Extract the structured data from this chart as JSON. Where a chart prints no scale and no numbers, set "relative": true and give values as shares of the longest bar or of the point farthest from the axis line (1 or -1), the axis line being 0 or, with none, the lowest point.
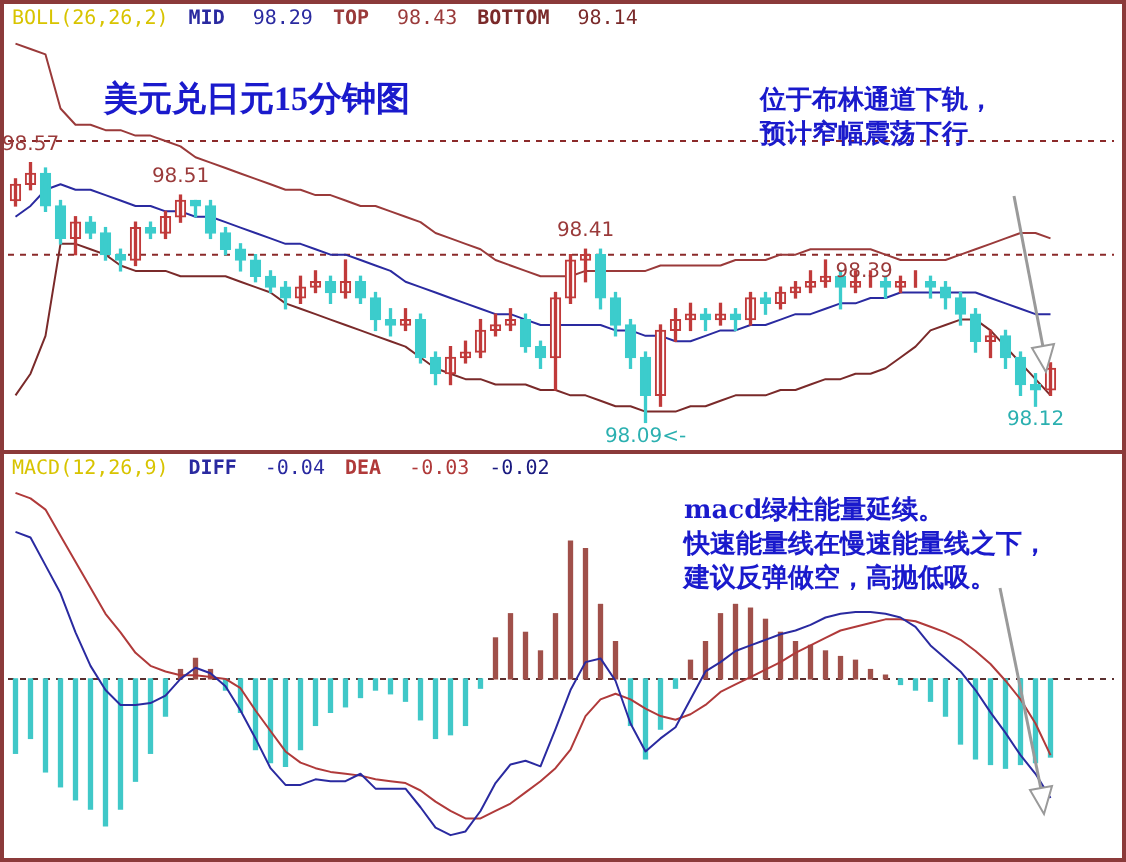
{
  "chart_data": [
    {
      "type": "candlestick",
      "title": "美元兑日元15分钟图",
      "legend": "top left",
      "legend_title": "BOLL(26,26,2)",
      "categories": [
        null,
        null,
        null,
        null,
        null,
        null,
        null,
        null,
        null,
        null,
        null,
        null,
        null,
        null,
        null,
        null,
        null,
        null,
        null,
        null,
        null,
        null,
        null,
        null,
        null,
        null,
        null,
        null,
        null,
        null,
        null,
        null,
        null,
        null,
        null,
        null,
        null,
        null,
        null,
        null,
        null,
        null,
        null,
        null,
        null,
        null,
        null,
        null,
        null,
        null,
        null,
        null,
        null,
        null,
        null,
        null,
        null,
        null,
        null,
        null,
        null,
        null,
        null,
        null,
        null,
        null,
        null,
        null,
        null,
        null
      ],
      "ohlc": [
        [
          98.5,
          98.54,
          98.49,
          98.53
        ],
        [
          98.53,
          98.57,
          98.52,
          98.55
        ],
        [
          98.55,
          98.56,
          98.48,
          98.49
        ],
        [
          98.49,
          98.5,
          98.42,
          98.43
        ],
        [
          98.43,
          98.47,
          98.4,
          98.46
        ],
        [
          98.46,
          98.47,
          98.43,
          98.44
        ],
        [
          98.44,
          98.45,
          98.39,
          98.4
        ],
        [
          98.4,
          98.41,
          98.37,
          98.39
        ],
        [
          98.39,
          98.46,
          98.38,
          98.45
        ],
        [
          98.45,
          98.46,
          98.43,
          98.44
        ],
        [
          98.44,
          98.48,
          98.43,
          98.47
        ],
        [
          98.47,
          98.51,
          98.46,
          98.5
        ],
        [
          98.5,
          98.5,
          98.47,
          98.49
        ],
        [
          98.49,
          98.5,
          98.43,
          98.44
        ],
        [
          98.44,
          98.45,
          98.4,
          98.41
        ],
        [
          98.41,
          98.42,
          98.37,
          98.39
        ],
        [
          98.39,
          98.4,
          98.35,
          98.36
        ],
        [
          98.36,
          98.37,
          98.33,
          98.34
        ],
        [
          98.34,
          98.35,
          98.3,
          98.32
        ],
        [
          98.32,
          98.36,
          98.31,
          98.34
        ],
        [
          98.34,
          98.37,
          98.33,
          98.35
        ],
        [
          98.35,
          98.36,
          98.31,
          98.33
        ],
        [
          98.33,
          98.39,
          98.32,
          98.35
        ],
        [
          98.35,
          98.36,
          98.31,
          98.32
        ],
        [
          98.32,
          98.33,
          98.26,
          98.28
        ],
        [
          98.28,
          98.3,
          98.25,
          98.27
        ],
        [
          98.27,
          98.3,
          98.26,
          98.28
        ],
        [
          98.28,
          98.29,
          98.2,
          98.21
        ],
        [
          98.21,
          98.22,
          98.16,
          98.18
        ],
        [
          98.18,
          98.23,
          98.16,
          98.21
        ],
        [
          98.21,
          98.24,
          98.2,
          98.22
        ],
        [
          98.22,
          98.28,
          98.21,
          98.26
        ],
        [
          98.26,
          98.29,
          98.25,
          98.27
        ],
        [
          98.27,
          98.3,
          98.26,
          98.28
        ],
        [
          98.28,
          98.29,
          98.22,
          98.23
        ],
        [
          98.23,
          98.24,
          98.19,
          98.21
        ],
        [
          98.21,
          98.33,
          98.15,
          98.32
        ],
        [
          98.32,
          98.4,
          98.31,
          98.39
        ],
        [
          98.39,
          98.41,
          98.35,
          98.4
        ],
        [
          98.4,
          98.41,
          98.3,
          98.32
        ],
        [
          98.32,
          98.33,
          98.25,
          98.27
        ],
        [
          98.27,
          98.28,
          98.19,
          98.21
        ],
        [
          98.21,
          98.22,
          98.09,
          98.14
        ],
        [
          98.14,
          98.27,
          98.12,
          98.26
        ],
        [
          98.26,
          98.3,
          98.24,
          98.28
        ],
        [
          98.28,
          98.31,
          98.26,
          98.29
        ],
        [
          98.29,
          98.3,
          98.26,
          98.28
        ],
        [
          98.28,
          98.31,
          98.27,
          98.29
        ],
        [
          98.29,
          98.3,
          98.26,
          98.28
        ],
        [
          98.28,
          98.33,
          98.27,
          98.32
        ],
        [
          98.32,
          98.33,
          98.29,
          98.31
        ],
        [
          98.31,
          98.34,
          98.3,
          98.33
        ],
        [
          98.33,
          98.35,
          98.32,
          98.34
        ],
        [
          98.34,
          98.37,
          98.33,
          98.35
        ],
        [
          98.35,
          98.39,
          98.34,
          98.36
        ],
        [
          98.36,
          98.37,
          98.3,
          98.34
        ],
        [
          98.34,
          98.37,
          98.33,
          98.35
        ],
        [
          98.35,
          98.37,
          98.34,
          98.35
        ],
        [
          98.35,
          98.36,
          98.32,
          98.34
        ],
        [
          98.34,
          98.36,
          98.33,
          98.35
        ],
        [
          98.35,
          98.37,
          98.34,
          98.35
        ],
        [
          98.35,
          98.36,
          98.32,
          98.34
        ],
        [
          98.34,
          98.35,
          98.3,
          98.32
        ],
        [
          98.32,
          98.33,
          98.27,
          98.29
        ],
        [
          98.29,
          98.3,
          98.22,
          98.24
        ],
        [
          98.24,
          98.26,
          98.21,
          98.25
        ],
        [
          98.25,
          98.26,
          98.19,
          98.21
        ],
        [
          98.21,
          98.22,
          98.14,
          98.16
        ],
        [
          98.16,
          98.18,
          98.12,
          98.15
        ],
        [
          98.15,
          98.2,
          98.14,
          98.19
        ]
      ],
      "value_labels": [
        null,
        "98.57",
        null,
        null,
        null,
        null,
        null,
        null,
        null,
        null,
        null,
        "98.51",
        null,
        null,
        null,
        null,
        null,
        null,
        null,
        null,
        null,
        null,
        null,
        null,
        null,
        null,
        null,
        null,
        null,
        null,
        null,
        null,
        null,
        null,
        null,
        null,
        null,
        null,
        "98.41",
        null,
        null,
        null,
        "98.09<-",
        null,
        null,
        null,
        null,
        null,
        null,
        null,
        null,
        null,
        null,
        null,
        "98.39",
        null,
        null,
        null,
        null,
        null,
        null,
        null,
        null,
        null,
        null,
        null,
        null,
        null,
        "98.12",
        null
      ],
      "series": [
        {
          "name": "MID",
          "type": "line",
          "color": "#2a2aa0",
          "values": [
            98.47,
            98.49,
            98.52,
            98.53,
            98.52,
            98.52,
            98.51,
            98.5,
            98.49,
            98.49,
            98.48,
            98.48,
            98.47,
            98.47,
            98.46,
            98.45,
            98.44,
            98.43,
            98.42,
            98.42,
            98.41,
            98.4,
            98.4,
            98.39,
            98.38,
            98.37,
            98.35,
            98.34,
            98.33,
            98.32,
            98.31,
            98.3,
            98.29,
            98.29,
            98.28,
            98.27,
            98.27,
            98.27,
            98.27,
            98.27,
            98.26,
            98.26,
            98.25,
            98.25,
            98.24,
            98.24,
            98.25,
            98.26,
            98.26,
            98.27,
            98.27,
            98.28,
            98.29,
            98.29,
            98.3,
            98.31,
            98.31,
            98.32,
            98.32,
            98.33,
            98.33,
            98.33,
            98.33,
            98.33,
            98.33,
            98.32,
            98.31,
            98.3,
            98.29,
            98.29
          ]
        },
        {
          "name": "TOP",
          "type": "line",
          "color": "#9a3a3a",
          "values": [
            98.79,
            98.78,
            98.77,
            98.67,
            98.64,
            98.64,
            98.63,
            98.63,
            98.62,
            98.62,
            98.61,
            98.6,
            98.58,
            98.57,
            98.56,
            98.55,
            98.54,
            98.53,
            98.52,
            98.52,
            98.51,
            98.51,
            98.5,
            98.49,
            98.49,
            98.48,
            98.47,
            98.46,
            98.44,
            98.43,
            98.42,
            98.41,
            98.39,
            98.38,
            98.37,
            98.36,
            98.36,
            98.36,
            98.37,
            98.37,
            98.37,
            98.37,
            98.37,
            98.38,
            98.38,
            98.38,
            98.38,
            98.38,
            98.39,
            98.39,
            98.39,
            98.4,
            98.4,
            98.41,
            98.41,
            98.41,
            98.41,
            98.41,
            98.4,
            98.39,
            98.39,
            98.39,
            98.39,
            98.4,
            98.41,
            98.42,
            98.43,
            98.44,
            98.44,
            98.43
          ]
        },
        {
          "name": "BOTTOM",
          "type": "line",
          "color": "#7a2a2a",
          "values": [
            98.14,
            98.18,
            98.25,
            98.42,
            98.42,
            98.41,
            98.4,
            98.38,
            98.37,
            98.37,
            98.37,
            98.36,
            98.36,
            98.36,
            98.36,
            98.35,
            98.34,
            98.33,
            98.31,
            98.3,
            98.29,
            98.28,
            98.27,
            98.26,
            98.25,
            98.24,
            98.23,
            98.21,
            98.19,
            98.18,
            98.17,
            98.17,
            98.16,
            98.16,
            98.16,
            98.15,
            98.15,
            98.14,
            98.14,
            98.13,
            98.12,
            98.12,
            98.11,
            98.11,
            98.11,
            98.12,
            98.12,
            98.13,
            98.14,
            98.14,
            98.14,
            98.15,
            98.15,
            98.16,
            98.17,
            98.17,
            98.18,
            98.18,
            98.19,
            98.21,
            98.23,
            98.26,
            98.27,
            98.28,
            98.28,
            98.26,
            98.23,
            98.2,
            98.17,
            98.14
          ]
        }
      ],
      "annotations": [
        "98.29",
        "98.43",
        "98.14",
        "位于布林通道下轨，",
        "预计窄幅震荡下行"
      ],
      "ref_lines": [
        {
          "axis": "y",
          "value": 98.61,
          "color": "#8b2a2a",
          "line_style": "dashed"
        },
        {
          "axis": "y",
          "value": 98.4,
          "color": "#8b2a2a",
          "line_style": "dashed"
        }
      ]
    },
    {
      "type": "bar",
      "relative": true,
      "legend": "top left",
      "legend_title": "MACD(12,26,9)",
      "categories": [
        null,
        null,
        null,
        null,
        null,
        null,
        null,
        null,
        null,
        null,
        null,
        null,
        null,
        null,
        null,
        null,
        null,
        null,
        null,
        null,
        null,
        null,
        null,
        null,
        null,
        null,
        null,
        null,
        null,
        null,
        null,
        null,
        null,
        null,
        null,
        null,
        null,
        null,
        null,
        null,
        null,
        null,
        null,
        null,
        null,
        null,
        null,
        null,
        null,
        null,
        null,
        null,
        null,
        null,
        null,
        null,
        null,
        null,
        null,
        null,
        null,
        null,
        null,
        null,
        null,
        null,
        null,
        null,
        null,
        null
      ],
      "series": [
        {
          "name": "DIFF",
          "type": "line",
          "color": "#2a2aa0",
          "values": [
            0.79,
            0.76,
            0.61,
            0.46,
            0.25,
            0.07,
            -0.06,
            -0.14,
            -0.14,
            -0.13,
            -0.09,
            0,
            0.06,
            0.03,
            -0.04,
            -0.17,
            -0.32,
            -0.48,
            -0.57,
            -0.57,
            -0.54,
            -0.55,
            -0.55,
            -0.51,
            -0.59,
            -0.59,
            -0.59,
            -0.69,
            -0.8,
            -0.84,
            -0.82,
            -0.71,
            -0.56,
            -0.46,
            -0.44,
            -0.47,
            -0.27,
            -0.06,
            0.09,
            0.11,
            -0.01,
            -0.24,
            -0.39,
            -0.32,
            -0.26,
            -0.11,
            0.04,
            0.09,
            0.15,
            0.18,
            0.21,
            0.24,
            0.26,
            0.29,
            0.33,
            0.35,
            0.36,
            0.36,
            0.35,
            0.33,
            0.28,
            0.18,
            0.11,
            0.04,
            -0.06,
            -0.18,
            -0.29,
            -0.41,
            -0.51,
            -0.64
          ]
        },
        {
          "name": "DEA",
          "type": "line",
          "color": "#b03a3a",
          "values": [
            1.0,
            0.97,
            0.91,
            0.77,
            0.63,
            0.49,
            0.35,
            0.25,
            0.14,
            0.07,
            0.04,
            0.02,
            0.02,
            0.01,
            0,
            -0.05,
            -0.17,
            -0.28,
            -0.39,
            -0.45,
            -0.48,
            -0.5,
            -0.51,
            -0.52,
            -0.54,
            -0.55,
            -0.56,
            -0.6,
            -0.66,
            -0.71,
            -0.75,
            -0.75,
            -0.71,
            -0.67,
            -0.61,
            -0.55,
            -0.48,
            -0.38,
            -0.2,
            -0.11,
            -0.08,
            -0.11,
            -0.16,
            -0.2,
            -0.22,
            -0.19,
            -0.14,
            -0.07,
            -0.03,
            0.01,
            0.05,
            0.09,
            0.14,
            0.18,
            0.22,
            0.26,
            0.28,
            0.3,
            0.32,
            0.32,
            0.31,
            0.28,
            0.25,
            0.21,
            0.15,
            0.08,
            -0.01,
            -0.11,
            -0.24,
            -0.41
          ]
        },
        {
          "type": "bar",
          "values": [
            -0.4,
            -0.32,
            -0.5,
            -0.58,
            -0.65,
            -0.7,
            -0.79,
            -0.7,
            -0.55,
            -0.4,
            -0.2,
            0.05,
            0.11,
            0.05,
            -0.06,
            -0.18,
            -0.38,
            -0.45,
            -0.47,
            -0.38,
            -0.25,
            -0.18,
            -0.15,
            -0.1,
            -0.06,
            -0.08,
            -0.12,
            -0.22,
            -0.32,
            -0.3,
            -0.25,
            -0.05,
            0.22,
            0.35,
            0.25,
            0.15,
            0.35,
            0.74,
            0.7,
            0.4,
            0.2,
            -0.25,
            -0.43,
            -0.27,
            -0.05,
            0.1,
            0.2,
            0.35,
            0.4,
            0.38,
            0.32,
            0.25,
            0.2,
            0.18,
            0.15,
            0.12,
            0.1,
            0.05,
            0.02,
            -0.03,
            -0.06,
            -0.12,
            -0.2,
            -0.35,
            -0.43,
            -0.46,
            -0.48,
            -0.46,
            -0.45,
            -0.42
          ],
          "colors": [
            "#40c8c8",
            "#40c8c8",
            "#40c8c8",
            "#40c8c8",
            "#40c8c8",
            "#40c8c8",
            "#40c8c8",
            "#40c8c8",
            "#40c8c8",
            "#40c8c8",
            "#40c8c8",
            "#a0504a",
            "#a0504a",
            "#a0504a",
            "#40c8c8",
            "#40c8c8",
            "#40c8c8",
            "#40c8c8",
            "#40c8c8",
            "#40c8c8",
            "#40c8c8",
            "#40c8c8",
            "#40c8c8",
            "#40c8c8",
            "#40c8c8",
            "#40c8c8",
            "#40c8c8",
            "#40c8c8",
            "#40c8c8",
            "#40c8c8",
            "#40c8c8",
            "#40c8c8",
            "#a0504a",
            "#a0504a",
            "#a0504a",
            "#a0504a",
            "#a0504a",
            "#a0504a",
            "#a0504a",
            "#a0504a",
            "#a0504a",
            "#40c8c8",
            "#40c8c8",
            "#40c8c8",
            "#40c8c8",
            "#a0504a",
            "#a0504a",
            "#a0504a",
            "#a0504a",
            "#a0504a",
            "#a0504a",
            "#a0504a",
            "#a0504a",
            "#a0504a",
            "#a0504a",
            "#a0504a",
            "#a0504a",
            "#a0504a",
            "#a0504a",
            "#40c8c8",
            "#40c8c8",
            "#40c8c8",
            "#40c8c8",
            "#40c8c8",
            "#40c8c8",
            "#40c8c8",
            "#40c8c8",
            "#40c8c8",
            "#40c8c8",
            "#40c8c8"
          ]
        }
      ],
      "annotations": [
        "-0.04",
        "-0.03",
        "-0.02",
        "macd绿柱能量延续。",
        "快速能量线在慢速能量线之下，",
        "建议反弹做空，高抛低吸。"
      ],
      "ref_lines": [
        {
          "axis": "y",
          "value": 0,
          "color": "#5a3030",
          "line_style": "dashed"
        }
      ]
    }
  ]
}
